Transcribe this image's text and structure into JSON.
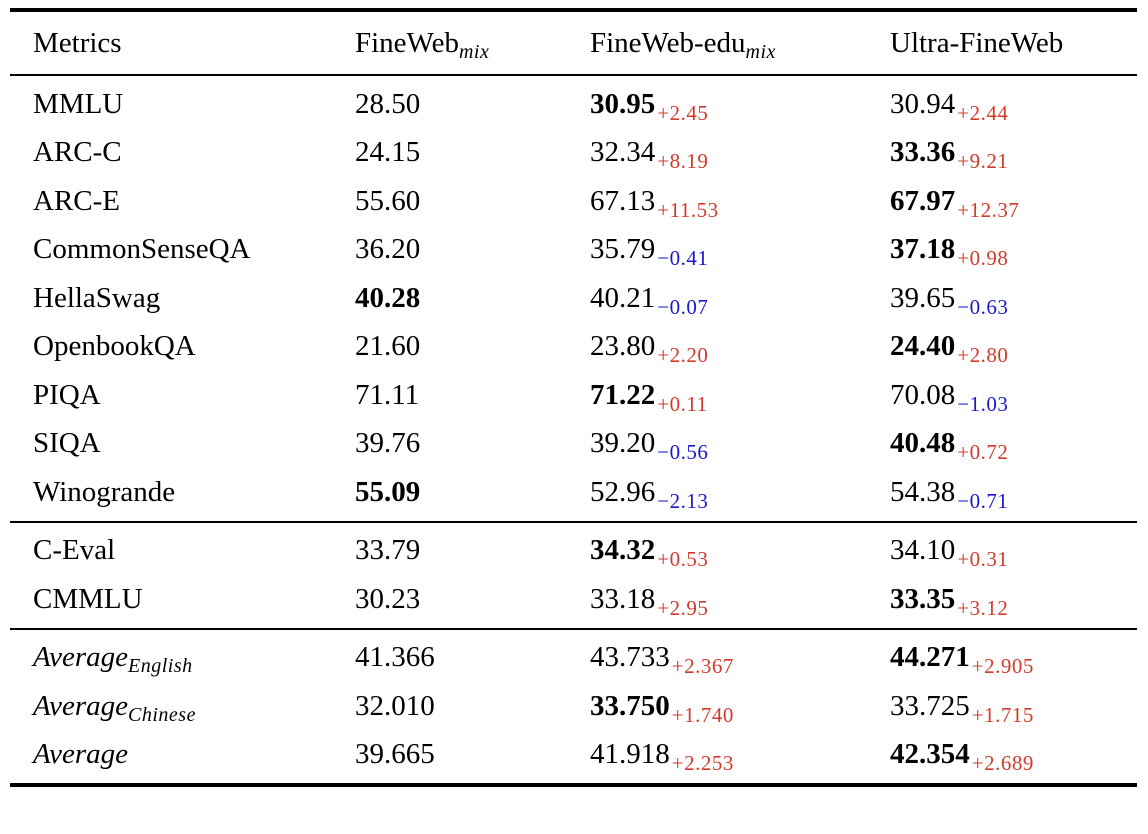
{
  "header": {
    "metrics_label": "Metrics",
    "columns": [
      {
        "base": "FineWeb",
        "sub": "mix"
      },
      {
        "base": "FineWeb-edu",
        "sub": "mix"
      },
      {
        "base": "Ultra-FineWeb",
        "sub": ""
      }
    ]
  },
  "sections": [
    {
      "name": "english-benchmarks",
      "rows": [
        {
          "metric": "MMLU",
          "metric_sub": "",
          "metric_italic": false,
          "cells": [
            {
              "value": "28.50",
              "bold": false,
              "delta": "",
              "trend": ""
            },
            {
              "value": "30.95",
              "bold": true,
              "delta": "+2.45",
              "trend": "up"
            },
            {
              "value": "30.94",
              "bold": false,
              "delta": "+2.44",
              "trend": "up"
            }
          ]
        },
        {
          "metric": "ARC-C",
          "metric_sub": "",
          "metric_italic": false,
          "cells": [
            {
              "value": "24.15",
              "bold": false,
              "delta": "",
              "trend": ""
            },
            {
              "value": "32.34",
              "bold": false,
              "delta": "+8.19",
              "trend": "up"
            },
            {
              "value": "33.36",
              "bold": true,
              "delta": "+9.21",
              "trend": "up"
            }
          ]
        },
        {
          "metric": "ARC-E",
          "metric_sub": "",
          "metric_italic": false,
          "cells": [
            {
              "value": "55.60",
              "bold": false,
              "delta": "",
              "trend": ""
            },
            {
              "value": "67.13",
              "bold": false,
              "delta": "+11.53",
              "trend": "up"
            },
            {
              "value": "67.97",
              "bold": true,
              "delta": "+12.37",
              "trend": "up"
            }
          ]
        },
        {
          "metric": "CommonSenseQA",
          "metric_sub": "",
          "metric_italic": false,
          "cells": [
            {
              "value": "36.20",
              "bold": false,
              "delta": "",
              "trend": ""
            },
            {
              "value": "35.79",
              "bold": false,
              "delta": "−0.41",
              "trend": "down"
            },
            {
              "value": "37.18",
              "bold": true,
              "delta": "+0.98",
              "trend": "up"
            }
          ]
        },
        {
          "metric": "HellaSwag",
          "metric_sub": "",
          "metric_italic": false,
          "cells": [
            {
              "value": "40.28",
              "bold": true,
              "delta": "",
              "trend": ""
            },
            {
              "value": "40.21",
              "bold": false,
              "delta": "−0.07",
              "trend": "down"
            },
            {
              "value": "39.65",
              "bold": false,
              "delta": "−0.63",
              "trend": "down"
            }
          ]
        },
        {
          "metric": "OpenbookQA",
          "metric_sub": "",
          "metric_italic": false,
          "cells": [
            {
              "value": "21.60",
              "bold": false,
              "delta": "",
              "trend": ""
            },
            {
              "value": "23.80",
              "bold": false,
              "delta": "+2.20",
              "trend": "up"
            },
            {
              "value": "24.40",
              "bold": true,
              "delta": "+2.80",
              "trend": "up"
            }
          ]
        },
        {
          "metric": "PIQA",
          "metric_sub": "",
          "metric_italic": false,
          "cells": [
            {
              "value": "71.11",
              "bold": false,
              "delta": "",
              "trend": ""
            },
            {
              "value": "71.22",
              "bold": true,
              "delta": "+0.11",
              "trend": "up"
            },
            {
              "value": "70.08",
              "bold": false,
              "delta": "−1.03",
              "trend": "down"
            }
          ]
        },
        {
          "metric": "SIQA",
          "metric_sub": "",
          "metric_italic": false,
          "cells": [
            {
              "value": "39.76",
              "bold": false,
              "delta": "",
              "trend": ""
            },
            {
              "value": "39.20",
              "bold": false,
              "delta": "−0.56",
              "trend": "down"
            },
            {
              "value": "40.48",
              "bold": true,
              "delta": "+0.72",
              "trend": "up"
            }
          ]
        },
        {
          "metric": "Winogrande",
          "metric_sub": "",
          "metric_italic": false,
          "cells": [
            {
              "value": "55.09",
              "bold": true,
              "delta": "",
              "trend": ""
            },
            {
              "value": "52.96",
              "bold": false,
              "delta": "−2.13",
              "trend": "down"
            },
            {
              "value": "54.38",
              "bold": false,
              "delta": "−0.71",
              "trend": "down"
            }
          ]
        }
      ]
    },
    {
      "name": "chinese-benchmarks",
      "rows": [
        {
          "metric": "C-Eval",
          "metric_sub": "",
          "metric_italic": false,
          "cells": [
            {
              "value": "33.79",
              "bold": false,
              "delta": "",
              "trend": ""
            },
            {
              "value": "34.32",
              "bold": true,
              "delta": "+0.53",
              "trend": "up"
            },
            {
              "value": "34.10",
              "bold": false,
              "delta": "+0.31",
              "trend": "up"
            }
          ]
        },
        {
          "metric": "CMMLU",
          "metric_sub": "",
          "metric_italic": false,
          "cells": [
            {
              "value": "30.23",
              "bold": false,
              "delta": "",
              "trend": ""
            },
            {
              "value": "33.18",
              "bold": false,
              "delta": "+2.95",
              "trend": "up"
            },
            {
              "value": "33.35",
              "bold": true,
              "delta": "+3.12",
              "trend": "up"
            }
          ]
        }
      ]
    },
    {
      "name": "averages",
      "rows": [
        {
          "metric": "Average",
          "metric_sub": "English",
          "metric_italic": true,
          "cells": [
            {
              "value": "41.366",
              "bold": false,
              "delta": "",
              "trend": ""
            },
            {
              "value": "43.733",
              "bold": false,
              "delta": "+2.367",
              "trend": "up"
            },
            {
              "value": "44.271",
              "bold": true,
              "delta": "+2.905",
              "trend": "up"
            }
          ]
        },
        {
          "metric": "Average",
          "metric_sub": "Chinese",
          "metric_italic": true,
          "cells": [
            {
              "value": "32.010",
              "bold": false,
              "delta": "",
              "trend": ""
            },
            {
              "value": "33.750",
              "bold": true,
              "delta": "+1.740",
              "trend": "up"
            },
            {
              "value": "33.725",
              "bold": false,
              "delta": "+1.715",
              "trend": "up"
            }
          ]
        },
        {
          "metric": "Average",
          "metric_sub": "",
          "metric_italic": true,
          "cells": [
            {
              "value": "39.665",
              "bold": false,
              "delta": "",
              "trend": ""
            },
            {
              "value": "41.918",
              "bold": false,
              "delta": "+2.253",
              "trend": "up"
            },
            {
              "value": "42.354",
              "bold": true,
              "delta": "+2.689",
              "trend": "up"
            }
          ]
        }
      ]
    }
  ],
  "colors": {
    "gain": "#d23b2b",
    "loss": "#1a18cf",
    "text": "#000000",
    "rule": "#000000",
    "background": "#ffffff"
  }
}
